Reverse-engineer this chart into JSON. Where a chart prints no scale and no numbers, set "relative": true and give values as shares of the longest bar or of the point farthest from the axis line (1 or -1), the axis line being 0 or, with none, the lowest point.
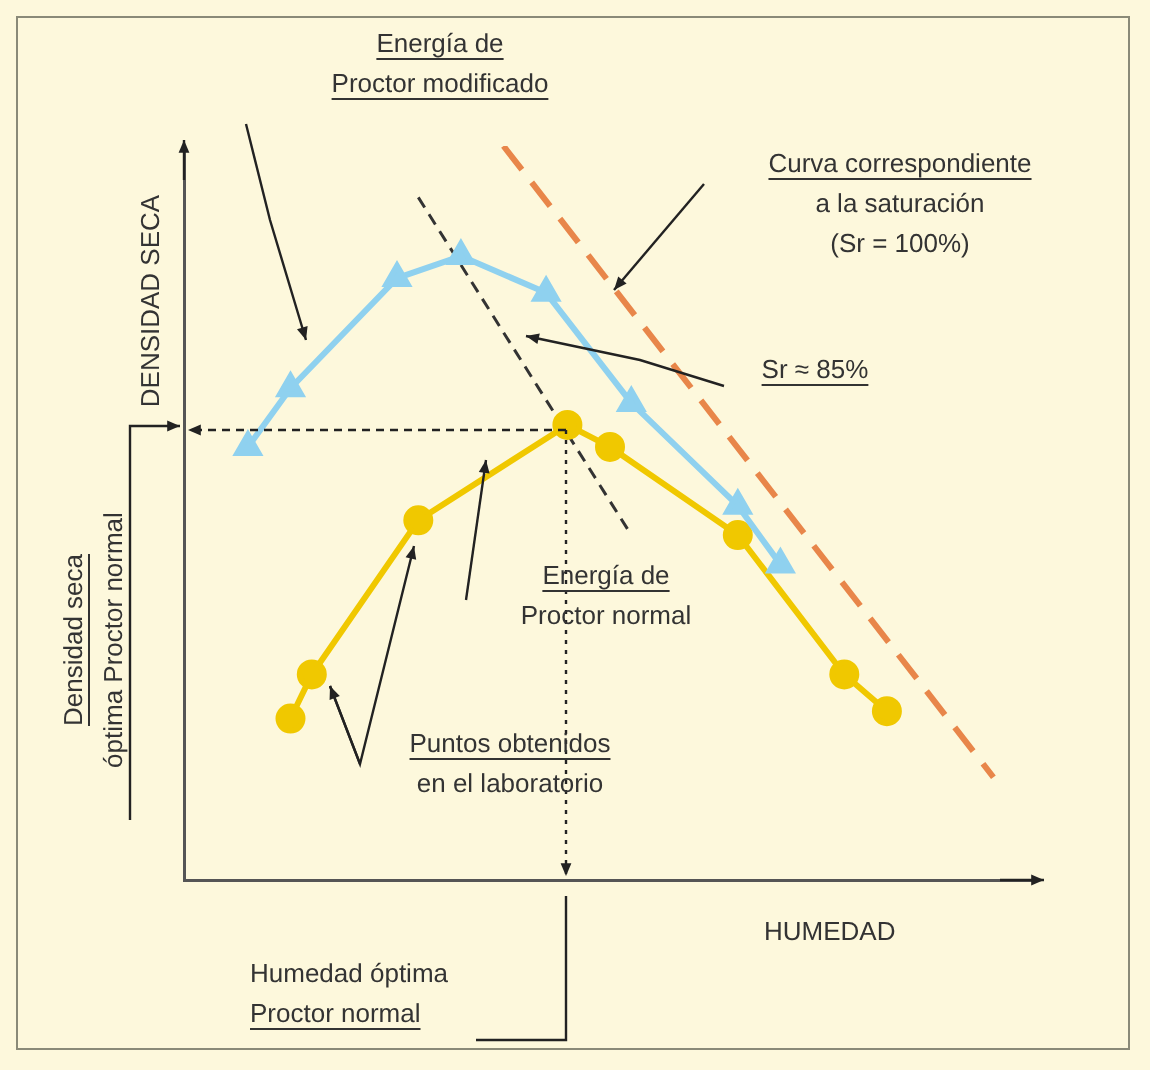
{
  "chart_data": {
    "type": "line",
    "relative": true,
    "xlabel": "HUMEDAD",
    "ylabel": "DENSIDAD SECA",
    "categories": [
      null,
      null,
      null,
      null,
      null,
      null,
      null,
      null,
      null,
      null,
      null,
      null,
      null,
      null,
      null,
      null,
      null,
      null,
      null,
      null,
      null,
      null,
      null,
      null,
      null,
      null,
      null,
      null,
      null,
      null,
      null,
      null,
      null,
      null,
      null,
      null,
      null,
      null,
      null,
      null,
      null
    ],
    "series": [
      {
        "type": "line",
        "color": "#8fd1ef",
        "marker": "triangle",
        "line_style": "solid",
        "values": [
          null,
          null,
          null,
          0.59,
          null,
          0.67,
          null,
          null,
          null,
          null,
          0.82,
          null,
          null,
          0.85,
          null,
          null,
          null,
          0.8,
          null,
          null,
          null,
          0.65,
          null,
          null,
          null,
          null,
          0.51,
          null,
          0.43,
          null,
          null,
          null,
          null,
          null,
          null,
          null,
          null,
          null,
          null,
          null,
          null
        ]
      },
      {
        "type": "line",
        "color": "#f0c800",
        "marker": "circle",
        "line_style": "solid",
        "values": [
          null,
          null,
          null,
          null,
          null,
          0.22,
          0.28,
          null,
          null,
          null,
          null,
          0.49,
          null,
          null,
          null,
          null,
          null,
          null,
          0.62,
          null,
          0.59,
          null,
          null,
          null,
          null,
          null,
          0.47,
          null,
          null,
          null,
          null,
          0.28,
          null,
          0.23,
          null,
          null,
          null,
          null,
          null,
          null,
          null
        ]
      },
      {
        "type": "line",
        "color": "#e8864a",
        "marker": "none",
        "line_style": "dashed",
        "values": [
          null,
          null,
          null,
          null,
          null,
          null,
          null,
          null,
          null,
          null,
          null,
          null,
          null,
          null,
          null,
          1,
          null,
          null,
          null,
          null,
          null,
          null,
          null,
          null,
          null,
          null,
          null,
          null,
          null,
          null,
          null,
          null,
          null,
          null,
          null,
          null,
          null,
          null,
          0.14,
          null,
          null
        ]
      },
      {
        "type": "line",
        "color": "#333333",
        "marker": "none",
        "line_style": "dashed",
        "values": [
          null,
          null,
          null,
          null,
          null,
          null,
          null,
          null,
          null,
          null,
          null,
          0.93,
          null,
          null,
          null,
          null,
          null,
          null,
          null,
          null,
          null,
          0.47,
          null,
          null,
          null,
          null,
          null,
          null,
          null,
          null,
          null,
          null,
          null,
          null,
          null,
          null,
          null,
          null,
          null,
          null,
          null
        ]
      }
    ],
    "annotations": [
      "Energía de\nProctor modificado",
      "Curva correspondiente\na la saturación\n(Sr = 100%)",
      "Sr ≈ 85%",
      "Energía de\nProctor normal",
      "Puntos obtenidos\nen el laboratorio",
      "Humedad óptima\nProctor normal",
      "Densidad seca\nóptima Proctor normal"
    ]
  }
}
